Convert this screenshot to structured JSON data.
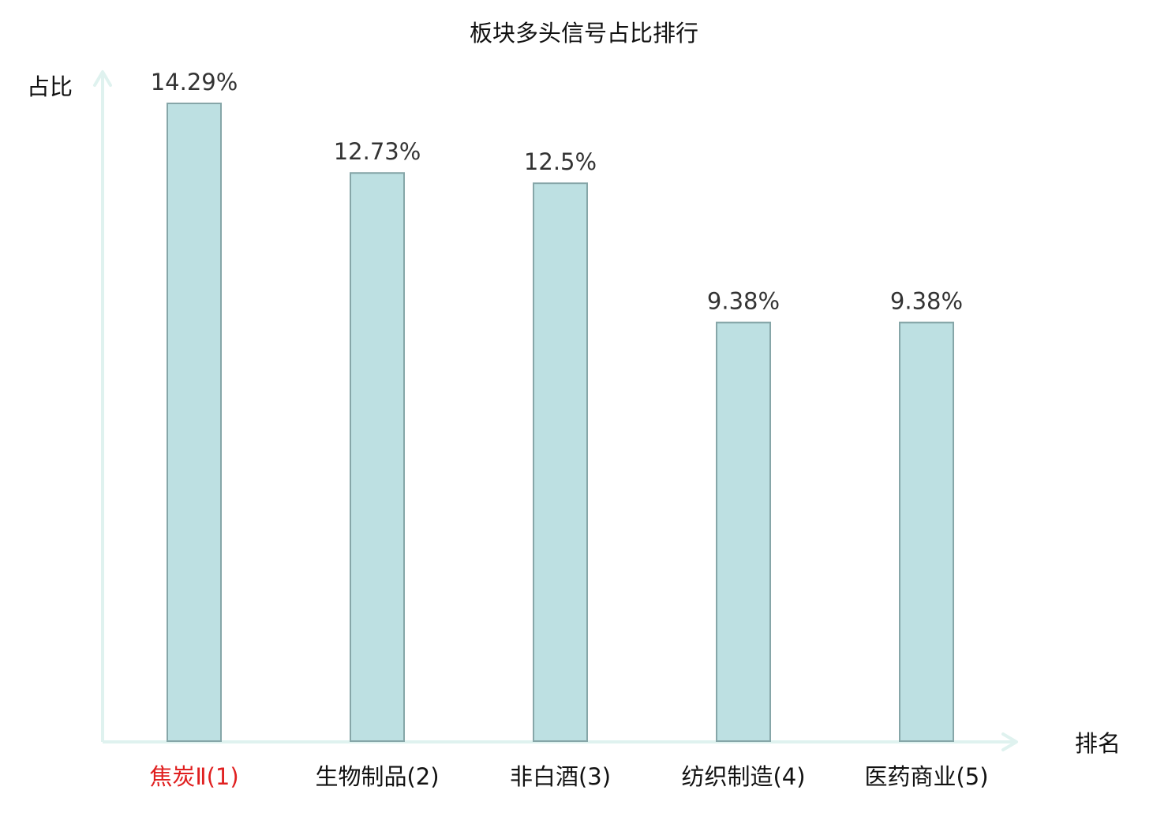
{
  "chart_data": {
    "type": "bar",
    "title": "板块多头信号占比排行",
    "ylabel": "占比",
    "xlabel": "排名",
    "categories": [
      "焦炭Ⅱ(1)",
      "生物制品(2)",
      "非白酒(3)",
      "纺织制造(4)",
      "医药商业(5)"
    ],
    "values": [
      14.29,
      12.73,
      12.5,
      9.38,
      9.38
    ],
    "value_labels": [
      "14.29%",
      "12.73%",
      "12.5%",
      "9.38%",
      "9.38%"
    ],
    "highlight_index": 0,
    "ylim": [
      0,
      14.29
    ],
    "grid": false,
    "colors": {
      "bar_fill": "#bde0e2",
      "bar_stroke": "#86a6a8",
      "axis": "#dff2ef",
      "highlight_label": "#e02020",
      "label": "#111111",
      "value_label": "#333333"
    }
  }
}
